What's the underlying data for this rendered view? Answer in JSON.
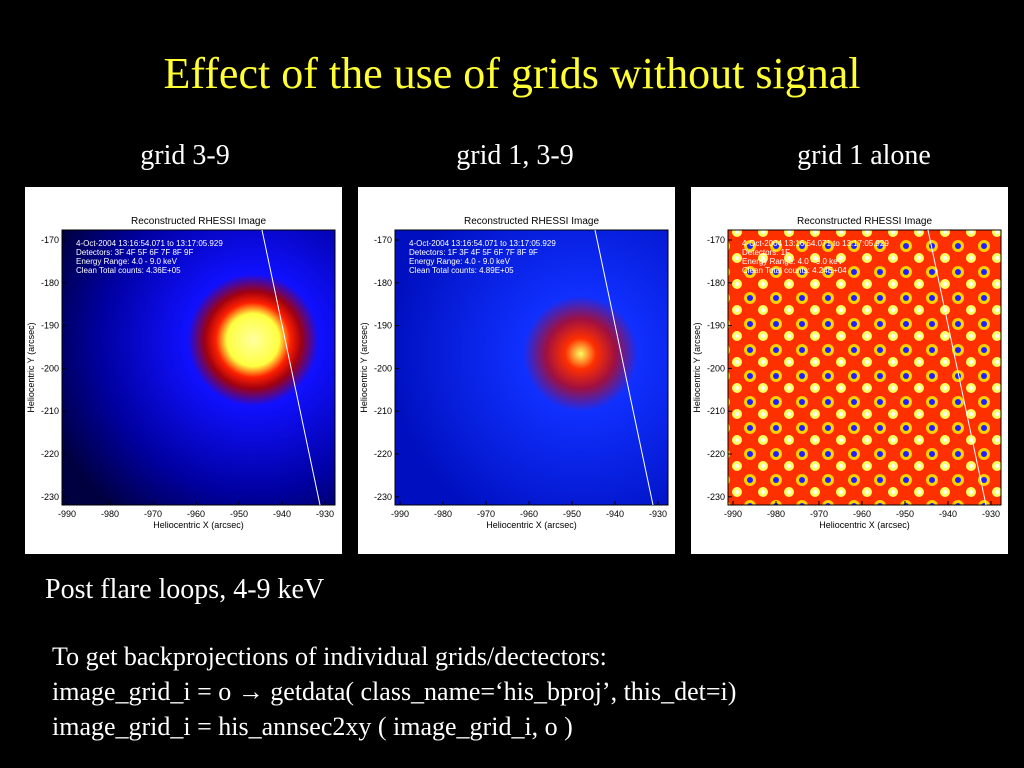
{
  "header": {
    "title": "Effect of the use of grids without signal"
  },
  "captions": [
    "grid 3-9",
    "grid 1, 3-9",
    "grid 1 alone"
  ],
  "axes": {
    "x_label": "Heliocentric X (arcsec)",
    "y_label": "Heliocentric Y (arcsec)",
    "x_ticks": [
      "-990",
      "-980",
      "-970",
      "-960",
      "-950",
      "-940",
      "-930"
    ],
    "y_ticks": [
      "-170",
      "-180",
      "-190",
      "-200",
      "-210",
      "-220",
      "-230"
    ]
  },
  "panels": [
    {
      "title": "Reconstructed RHESSI Image",
      "info": [
        "4-Oct-2004 13:16:54.071 to 13:17:05.929",
        "Detectors: 3F 4F 5F 6F 7F 8F 9F",
        "Energy Range: 4.0 - 9.0 keV",
        "Clean    Total counts: 4.36E+05"
      ]
    },
    {
      "title": "Reconstructed RHESSI Image",
      "info": [
        "4-Oct-2004 13:16:54.071 to 13:17:05.929",
        "Detectors: 1F 3F 4F 5F 6F 7F 8F 9F",
        "Energy Range: 4.0 - 9.0 keV",
        "Clean    Total counts: 4.89E+05"
      ]
    },
    {
      "title": "Reconstructed RHESSI Image",
      "info": [
        "4-Oct-2004 13:16:54.071 to 13:17:05.929",
        "Detectors: 1F",
        "Energy Range: 4.0 - 9.0 keV",
        "Clean    Total counts: 4.24E+04"
      ]
    }
  ],
  "subtitle": "Post flare loops, 4-9 keV",
  "code_lines": [
    "To get backprojections of individual grids/dectectors:",
    "image_grid_i = o → getdata( class_name=‘his_bproj’, this_det=i)",
    "image_grid_i = his_annsec2xy ( image_grid_i, o )"
  ]
}
